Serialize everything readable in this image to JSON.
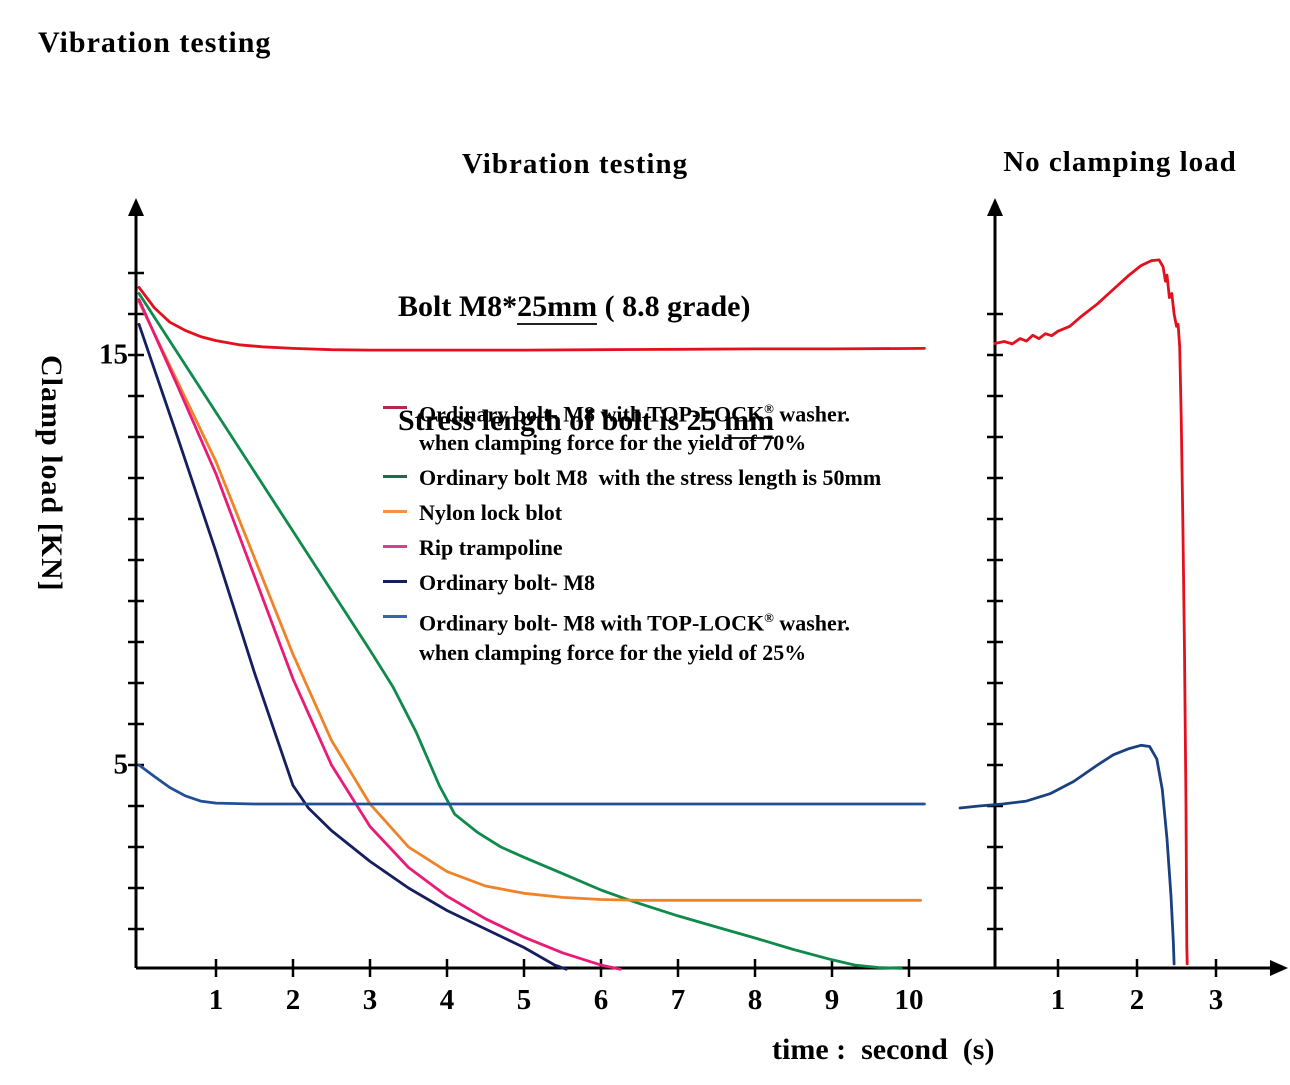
{
  "page": {
    "title": "Vibration testing"
  },
  "main_chart": {
    "title": "Vibration testing",
    "subtitle1_pre": "Bolt M8*",
    "subtitle1_u": "25mm",
    "subtitle1_post": " ( 8.8 grade)",
    "subtitle2_pre": "Stress length of bolt is 25 ",
    "subtitle2_u": "mm",
    "ylabel": "Clamp load [KN]",
    "xlabel": "time :  second  (s)"
  },
  "right_chart": {
    "title": "No clamping load"
  },
  "legend": {
    "items": [
      {
        "color": "#b02946",
        "pre": "Ordinary bolt- M8 with TOP-LOCK",
        "reg": "®",
        "post": " washer.",
        "line2": "when clamping force for the yield of 70%"
      },
      {
        "color": "#15704a",
        "pre": "Ordinary bolt M8  with the stress length is 50mm"
      },
      {
        "color": "#f49242",
        "pre": "Nylon lock blot"
      },
      {
        "color": "#d8408e",
        "pre": "Rip trampoline"
      },
      {
        "color": "#14205c",
        "pre": "Ordinary bolt- M8"
      },
      {
        "color": "#3c63a8",
        "pre": "Ordinary bolt- M8 with TOP-LOCK",
        "reg": "®",
        "post": " washer.",
        "line2": "when clamping force for the yield of 25%"
      }
    ]
  },
  "chart_data": [
    {
      "type": "line",
      "title": "Vibration testing",
      "subtitle": "Bolt M8*25mm ( 8.8 grade) / Stress length of bolt is 25 mm",
      "xlabel": "time : second (s)",
      "ylabel": "Clamp load [KN]",
      "xlim": [
        0,
        10.6
      ],
      "ylim": [
        0,
        18.7
      ],
      "x_ticks": [
        1,
        2,
        3,
        4,
        5,
        6,
        7,
        8,
        9,
        10
      ],
      "y_tick_labels": [
        {
          "label": "15",
          "value": 15
        },
        {
          "label": "5",
          "value": 5
        }
      ],
      "y_tick_step": 1,
      "grid": false,
      "legend_position": "center-left inside",
      "series": [
        {
          "name": "Ordinary bolt- M8 with TOP-LOCK® washer. when clamping force for the yield of 70%",
          "color": "#e3101e",
          "points": [
            [
              0,
              16.65
            ],
            [
              0.2,
              16.15
            ],
            [
              0.4,
              15.8
            ],
            [
              0.6,
              15.6
            ],
            [
              0.8,
              15.45
            ],
            [
              1,
              15.35
            ],
            [
              1.3,
              15.25
            ],
            [
              1.6,
              15.2
            ],
            [
              2,
              15.16
            ],
            [
              2.5,
              15.13
            ],
            [
              3,
              15.12
            ],
            [
              4,
              15.12
            ],
            [
              5,
              15.12
            ],
            [
              6,
              15.13
            ],
            [
              7,
              15.14
            ],
            [
              8,
              15.15
            ],
            [
              9,
              15.15
            ],
            [
              10.2,
              15.16
            ]
          ]
        },
        {
          "name": "Ordinary bolt M8 with the stress length is 50mm",
          "color": "#0e8a4b",
          "points": [
            [
              0,
              16.5
            ],
            [
              0.5,
              15.05
            ],
            [
              1,
              13.6
            ],
            [
              1.5,
              12.15
            ],
            [
              2,
              10.7
            ],
            [
              2.5,
              9.25
            ],
            [
              3,
              7.8
            ],
            [
              3.3,
              6.9
            ],
            [
              3.6,
              5.8
            ],
            [
              3.9,
              4.5
            ],
            [
              4.1,
              3.8
            ],
            [
              4.4,
              3.35
            ],
            [
              4.7,
              3.0
            ],
            [
              5,
              2.75
            ],
            [
              5.5,
              2.35
            ],
            [
              6,
              1.95
            ],
            [
              6.3,
              1.75
            ],
            [
              6.5,
              1.62
            ],
            [
              7,
              1.32
            ],
            [
              7.5,
              1.05
            ],
            [
              8,
              0.78
            ],
            [
              8.5,
              0.5
            ],
            [
              9,
              0.25
            ],
            [
              9.3,
              0.12
            ],
            [
              9.6,
              0.06
            ],
            [
              9.9,
              0.04
            ]
          ]
        },
        {
          "name": "Nylon lock blot",
          "color": "#f08228",
          "points": [
            [
              0,
              16.3
            ],
            [
              0.5,
              14.35
            ],
            [
              1,
              12.4
            ],
            [
              1.5,
              10.05
            ],
            [
              2,
              7.7
            ],
            [
              2.5,
              5.6
            ],
            [
              3,
              4.05
            ],
            [
              3.5,
              3.0
            ],
            [
              4,
              2.4
            ],
            [
              4.5,
              2.05
            ],
            [
              5,
              1.87
            ],
            [
              5.5,
              1.77
            ],
            [
              6,
              1.72
            ],
            [
              6.5,
              1.7
            ],
            [
              7.5,
              1.7
            ],
            [
              9,
              1.7
            ],
            [
              10.15,
              1.7
            ]
          ]
        },
        {
          "name": "Rip trampoline",
          "color": "#ea1a77",
          "points": [
            [
              0,
              16.35
            ],
            [
              0.5,
              14.25
            ],
            [
              1,
              12.1
            ],
            [
              1.5,
              9.6
            ],
            [
              2,
              7.1
            ],
            [
              2.5,
              5.0
            ],
            [
              3,
              3.5
            ],
            [
              3.5,
              2.5
            ],
            [
              4,
              1.8
            ],
            [
              4.5,
              1.25
            ],
            [
              5,
              0.8
            ],
            [
              5.5,
              0.42
            ],
            [
              6,
              0.12
            ],
            [
              6.25,
              0.02
            ]
          ]
        },
        {
          "name": "Ordinary bolt- M8",
          "color": "#151f60",
          "points": [
            [
              0,
              15.75
            ],
            [
              0.5,
              13.0
            ],
            [
              1,
              10.2
            ],
            [
              1.5,
              7.25
            ],
            [
              1.8,
              5.6
            ],
            [
              2,
              4.5
            ],
            [
              2.2,
              3.95
            ],
            [
              2.5,
              3.4
            ],
            [
              3,
              2.65
            ],
            [
              3.5,
              2.0
            ],
            [
              4,
              1.45
            ],
            [
              4.5,
              1.0
            ],
            [
              5,
              0.55
            ],
            [
              5.4,
              0.12
            ],
            [
              5.55,
              0.02
            ]
          ]
        },
        {
          "name": "Ordinary bolt- M8 with TOP-LOCK® washer. when clamping force for the yield of 25%",
          "color": "#234f99",
          "points": [
            [
              0,
              5.0
            ],
            [
              0.2,
              4.72
            ],
            [
              0.4,
              4.45
            ],
            [
              0.6,
              4.25
            ],
            [
              0.8,
              4.12
            ],
            [
              1,
              4.07
            ],
            [
              1.5,
              4.05
            ],
            [
              2,
              4.05
            ],
            [
              6,
              4.05
            ],
            [
              10.2,
              4.05
            ]
          ]
        }
      ]
    },
    {
      "type": "line",
      "title": "No clamping load",
      "xlim": [
        0,
        3.8
      ],
      "ylim": [
        0,
        18.7
      ],
      "x_ticks": [
        1,
        2,
        3
      ],
      "y_tick_step": 1,
      "grid": false,
      "series": [
        {
          "name": "TOP-LOCK 70% bolt, no clamping load",
          "color": "#e3101e",
          "points": [
            [
              0.2,
              15.28
            ],
            [
              0.32,
              15.33
            ],
            [
              0.42,
              15.27
            ],
            [
              0.52,
              15.4
            ],
            [
              0.6,
              15.34
            ],
            [
              0.68,
              15.48
            ],
            [
              0.76,
              15.4
            ],
            [
              0.84,
              15.52
            ],
            [
              0.92,
              15.47
            ],
            [
              1.0,
              15.58
            ],
            [
              1.15,
              15.7
            ],
            [
              1.3,
              15.95
            ],
            [
              1.5,
              16.25
            ],
            [
              1.7,
              16.6
            ],
            [
              1.9,
              16.95
            ],
            [
              2.05,
              17.18
            ],
            [
              2.18,
              17.3
            ],
            [
              2.28,
              17.32
            ],
            [
              2.33,
              17.15
            ],
            [
              2.36,
              16.8
            ],
            [
              2.38,
              16.95
            ],
            [
              2.41,
              16.4
            ],
            [
              2.44,
              16.5
            ],
            [
              2.47,
              16.0
            ],
            [
              2.5,
              15.7
            ],
            [
              2.52,
              15.75
            ],
            [
              2.54,
              15.2
            ],
            [
              2.56,
              13.5
            ],
            [
              2.58,
              11.0
            ],
            [
              2.6,
              8.0
            ],
            [
              2.62,
              4.0
            ],
            [
              2.63,
              0.6
            ],
            [
              2.635,
              0.15
            ]
          ]
        },
        {
          "name": "TOP-LOCK 25% bolt, no clamping load",
          "color": "#1b4080",
          "points": [
            [
              -0.24,
              3.95
            ],
            [
              0,
              4.0
            ],
            [
              0.3,
              4.05
            ],
            [
              0.6,
              4.12
            ],
            [
              0.9,
              4.3
            ],
            [
              1.2,
              4.6
            ],
            [
              1.5,
              5.0
            ],
            [
              1.7,
              5.25
            ],
            [
              1.9,
              5.4
            ],
            [
              2.05,
              5.48
            ],
            [
              2.16,
              5.45
            ],
            [
              2.25,
              5.15
            ],
            [
              2.32,
              4.4
            ],
            [
              2.38,
              3.2
            ],
            [
              2.43,
              1.8
            ],
            [
              2.46,
              0.7
            ],
            [
              2.47,
              0.15
            ]
          ]
        }
      ]
    }
  ]
}
